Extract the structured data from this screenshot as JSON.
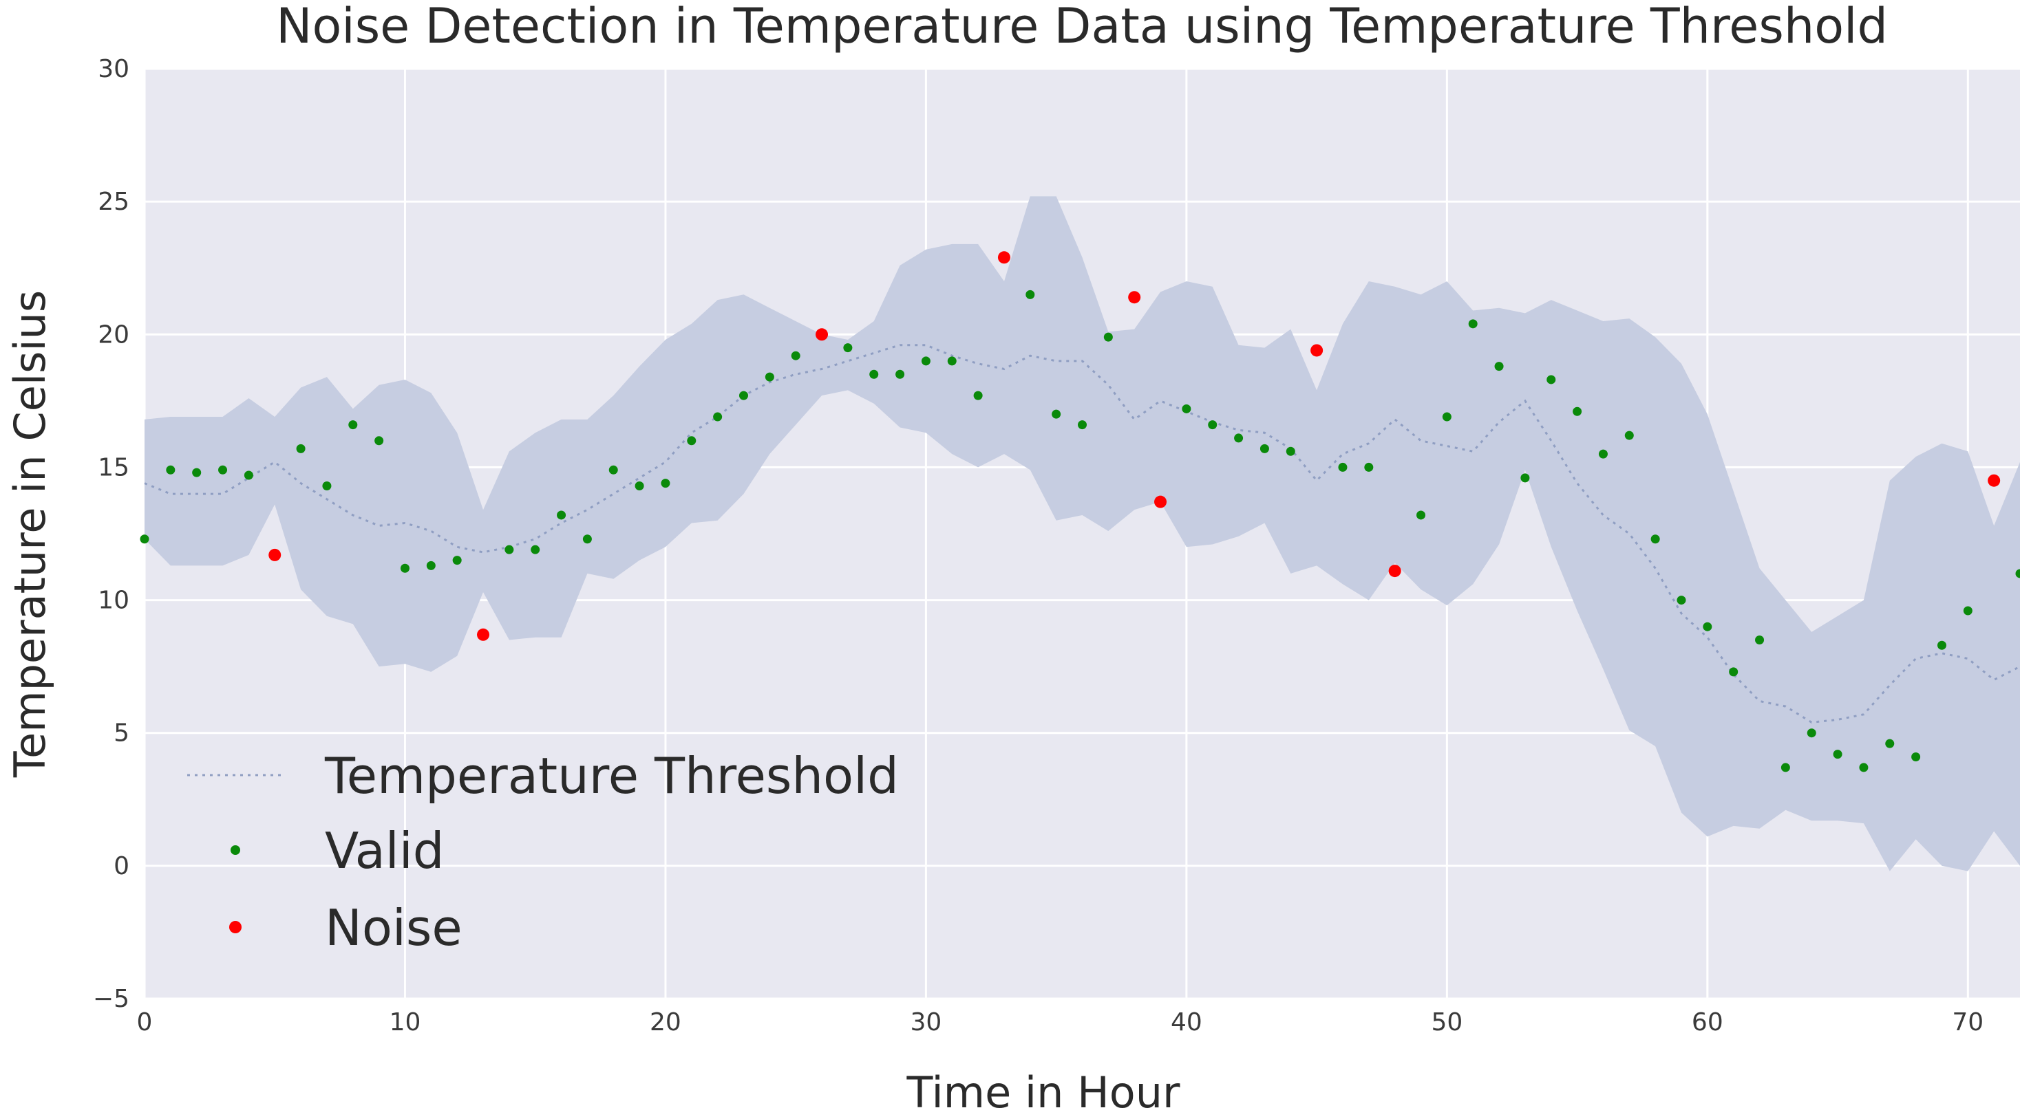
{
  "chart_data": {
    "type": "scatter",
    "title": "Noise Detection in Temperature Data using Temperature Threshold",
    "xlabel": "Time in Hour",
    "ylabel": "Temperature in Celsius",
    "xlim": [
      0,
      72
    ],
    "ylim": [
      -5,
      30
    ],
    "xticks": [
      0,
      10,
      20,
      30,
      40,
      50,
      60,
      70
    ],
    "yticks": [
      -5,
      0,
      5,
      10,
      15,
      20,
      25,
      30
    ],
    "xtick_labels": [
      "0",
      "10",
      "20",
      "30",
      "40",
      "50",
      "60",
      "70"
    ],
    "ytick_labels": [
      "−5",
      "0",
      "5",
      "10",
      "15",
      "20",
      "25",
      "30"
    ],
    "grid": true,
    "legend_position": "lower-left",
    "colors": {
      "background": "#e8e8f1",
      "grid": "#ffffff",
      "band": "#c6cde1",
      "threshold_line": "#8f9ec2",
      "valid": "#0a8a0a",
      "noise": "#ff0000"
    },
    "threshold": {
      "name": "Temperature Threshold",
      "x": [
        0,
        1,
        2,
        3,
        4,
        5,
        6,
        7,
        8,
        9,
        10,
        11,
        12,
        13,
        14,
        15,
        16,
        17,
        18,
        19,
        20,
        21,
        22,
        23,
        24,
        25,
        26,
        27,
        28,
        29,
        30,
        31,
        32,
        33,
        34,
        35,
        36,
        37,
        38,
        39,
        40,
        41,
        42,
        43,
        44,
        45,
        46,
        47,
        48,
        49,
        50,
        51,
        52,
        53,
        54,
        55,
        56,
        57,
        58,
        59,
        60,
        61,
        62,
        63,
        64,
        65,
        66,
        67,
        68,
        69,
        70,
        71,
        72
      ],
      "y": [
        14.4,
        14.0,
        14.0,
        14.0,
        14.6,
        15.2,
        14.4,
        13.8,
        13.2,
        12.8,
        12.9,
        12.6,
        12.0,
        11.8,
        12.0,
        12.3,
        12.9,
        13.4,
        14.0,
        14.6,
        15.2,
        16.3,
        16.9,
        17.7,
        18.2,
        18.5,
        18.7,
        19.0,
        19.3,
        19.6,
        19.6,
        19.2,
        18.9,
        18.7,
        19.2,
        19.0,
        19.0,
        18.1,
        16.8,
        17.5,
        17.1,
        16.7,
        16.4,
        16.3,
        15.7,
        14.5,
        15.5,
        15.9,
        16.8,
        16.0,
        15.8,
        15.6,
        16.7,
        17.5,
        16.0,
        14.4,
        13.2,
        12.5,
        11.2,
        9.5,
        8.6,
        7.2,
        6.2,
        6.0,
        5.4,
        5.5,
        5.7,
        6.8,
        7.8,
        8.0,
        7.8,
        7.0,
        7.5
      ]
    },
    "band": {
      "name": "Threshold range",
      "upper": [
        16.8,
        16.9,
        16.9,
        16.9,
        17.6,
        16.9,
        18.0,
        18.4,
        17.2,
        18.1,
        18.3,
        17.8,
        16.3,
        13.4,
        15.6,
        16.3,
        16.8,
        16.8,
        17.7,
        18.8,
        19.8,
        20.4,
        21.3,
        21.5,
        21.0,
        20.5,
        20.0,
        19.8,
        20.5,
        22.6,
        23.2,
        23.4,
        23.4,
        22.0,
        25.2,
        25.2,
        22.9,
        20.1,
        20.2,
        21.6,
        22.0,
        21.8,
        19.6,
        19.5,
        20.2,
        17.9,
        20.4,
        22.0,
        21.8,
        21.5,
        22.0,
        20.9,
        21.0,
        20.8,
        21.3,
        20.9,
        20.5,
        20.6,
        19.9,
        18.9,
        17.0,
        14.1,
        11.2,
        10.0,
        8.8,
        9.4,
        10.0,
        14.5,
        15.4,
        15.9,
        15.6,
        12.8,
        15.2
      ],
      "lower": [
        12.3,
        11.3,
        11.3,
        11.3,
        11.7,
        13.6,
        10.4,
        9.4,
        9.1,
        7.5,
        7.6,
        7.3,
        7.9,
        10.3,
        8.5,
        8.6,
        8.6,
        11.0,
        10.8,
        11.5,
        12.0,
        12.9,
        13.0,
        14.0,
        15.5,
        16.6,
        17.7,
        17.9,
        17.4,
        16.5,
        16.3,
        15.5,
        15.0,
        15.5,
        14.9,
        13.0,
        13.2,
        12.6,
        13.4,
        13.7,
        12.0,
        12.1,
        12.4,
        12.9,
        11.0,
        11.3,
        10.6,
        10.0,
        11.4,
        10.4,
        9.8,
        10.6,
        12.1,
        14.9,
        12.0,
        9.6,
        7.4,
        5.1,
        4.5,
        2.0,
        1.1,
        1.5,
        1.4,
        2.1,
        1.7,
        1.7,
        1.6,
        -0.2,
        1.0,
        0.0,
        -0.2,
        1.3,
        0.0
      ]
    },
    "series": [
      {
        "name": "Valid",
        "x": [
          0,
          1,
          2,
          3,
          4,
          6,
          7,
          8,
          9,
          10,
          11,
          12,
          14,
          15,
          16,
          17,
          18,
          19,
          20,
          21,
          22,
          23,
          24,
          25,
          27,
          28,
          29,
          30,
          31,
          32,
          34,
          35,
          36,
          37,
          40,
          41,
          42,
          43,
          44,
          46,
          47,
          49,
          50,
          51,
          52,
          53,
          54,
          55,
          56,
          57,
          58,
          59,
          60,
          61,
          62,
          63,
          64,
          65,
          66,
          67,
          68,
          69,
          70,
          72
        ],
        "y": [
          12.3,
          14.9,
          14.8,
          14.9,
          14.7,
          15.7,
          14.3,
          16.6,
          16.0,
          11.2,
          11.3,
          11.5,
          11.9,
          11.9,
          13.2,
          12.3,
          14.9,
          14.3,
          14.4,
          16.0,
          16.9,
          17.7,
          18.4,
          19.2,
          19.5,
          18.5,
          18.5,
          19.0,
          19.0,
          17.7,
          21.5,
          17.0,
          16.6,
          19.9,
          17.2,
          16.6,
          16.1,
          15.7,
          15.6,
          15.0,
          15.0,
          13.2,
          16.9,
          20.4,
          18.8,
          14.6,
          18.3,
          17.1,
          15.5,
          16.2,
          12.3,
          10.0,
          9.0,
          7.3,
          8.5,
          3.7,
          5.0,
          4.2,
          3.7,
          4.6,
          4.1,
          8.3,
          9.6,
          11.0
        ]
      },
      {
        "name": "Noise",
        "x": [
          5,
          13,
          26,
          33,
          38,
          39,
          45,
          48,
          71
        ],
        "y": [
          11.7,
          8.7,
          20.0,
          22.9,
          21.4,
          13.7,
          19.4,
          11.1,
          14.5
        ]
      }
    ],
    "legend": [
      "Temperature Threshold",
      "Valid",
      "Noise"
    ]
  }
}
